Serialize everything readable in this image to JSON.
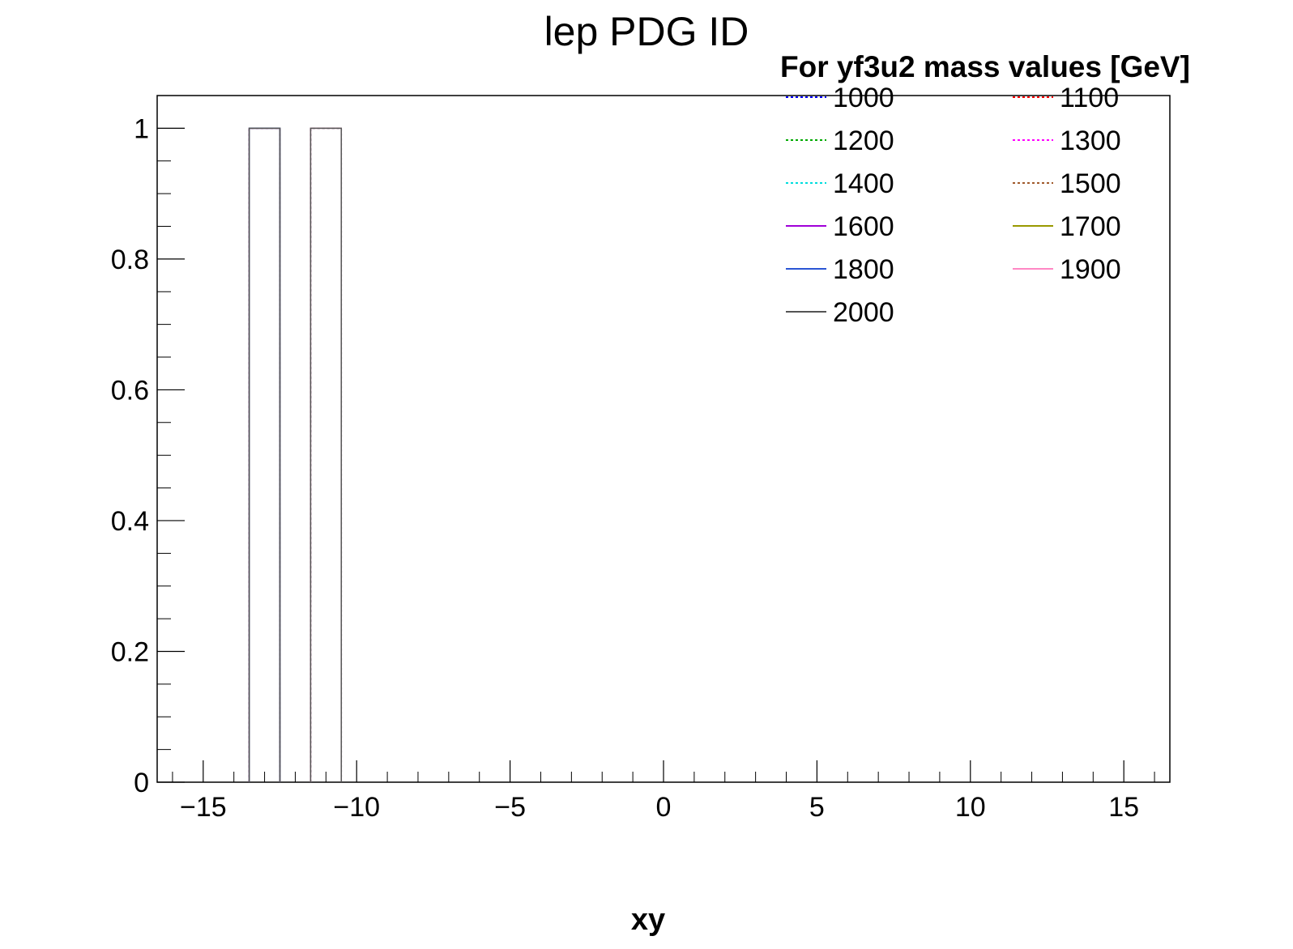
{
  "chart_data": {
    "type": "histogram",
    "title": "lep PDG ID",
    "xlabel": "xy",
    "ylabel": "",
    "xlim": [
      -16.5,
      16.5
    ],
    "ylim": [
      0,
      1.05
    ],
    "bin_width": 1,
    "x_ticks": [
      -15,
      -10,
      -5,
      0,
      5,
      10,
      15
    ],
    "x_tick_labels": [
      "−15",
      "−10",
      "−5",
      "0",
      "5",
      "10",
      "15"
    ],
    "y_ticks": [
      0,
      0.2,
      0.4,
      0.6,
      0.8,
      1
    ],
    "y_tick_labels": [
      "0",
      "0.2",
      "0.4",
      "0.6",
      "0.8",
      "1"
    ],
    "legend": {
      "title": "For yf3u2 mass values [GeV]",
      "placement": "top-right",
      "columns": 2
    },
    "series": [
      {
        "name": "1000",
        "color": "#0000ff",
        "dash": "dotted",
        "bins": [
          {
            "x": -13,
            "y": 1
          }
        ]
      },
      {
        "name": "1100",
        "color": "#ff0000",
        "dash": "dotted",
        "bins": [
          {
            "x": -13,
            "y": 1
          }
        ]
      },
      {
        "name": "1200",
        "color": "#00aa00",
        "dash": "dotted",
        "bins": [
          {
            "x": -11,
            "y": 1
          }
        ]
      },
      {
        "name": "1300",
        "color": "#ff00ff",
        "dash": "dotted",
        "bins": [
          {
            "x": -11,
            "y": 1
          }
        ]
      },
      {
        "name": "1400",
        "color": "#00dddd",
        "dash": "dotted",
        "bins": [
          {
            "x": -11,
            "y": 1
          }
        ]
      },
      {
        "name": "1500",
        "color": "#a05a2c",
        "dash": "dotted",
        "bins": [
          {
            "x": -11,
            "y": 1
          }
        ]
      },
      {
        "name": "1600",
        "color": "#a000d8",
        "dash": "solid",
        "bins": [
          {
            "x": -13,
            "y": 1
          }
        ]
      },
      {
        "name": "1700",
        "color": "#999900",
        "dash": "solid",
        "bins": [
          {
            "x": -13,
            "y": 1
          }
        ]
      },
      {
        "name": "1800",
        "color": "#2a55d4",
        "dash": "solid",
        "bins": [
          {
            "x": -13,
            "y": 1
          }
        ]
      },
      {
        "name": "1900",
        "color": "#ff88c4",
        "dash": "solid",
        "bins": [
          {
            "x": -11,
            "y": 1
          }
        ]
      },
      {
        "name": "2000",
        "color": "#555555",
        "dash": "solid",
        "bins": [
          {
            "x": -13,
            "y": 1
          },
          {
            "x": -11,
            "y": 1
          }
        ]
      }
    ]
  }
}
